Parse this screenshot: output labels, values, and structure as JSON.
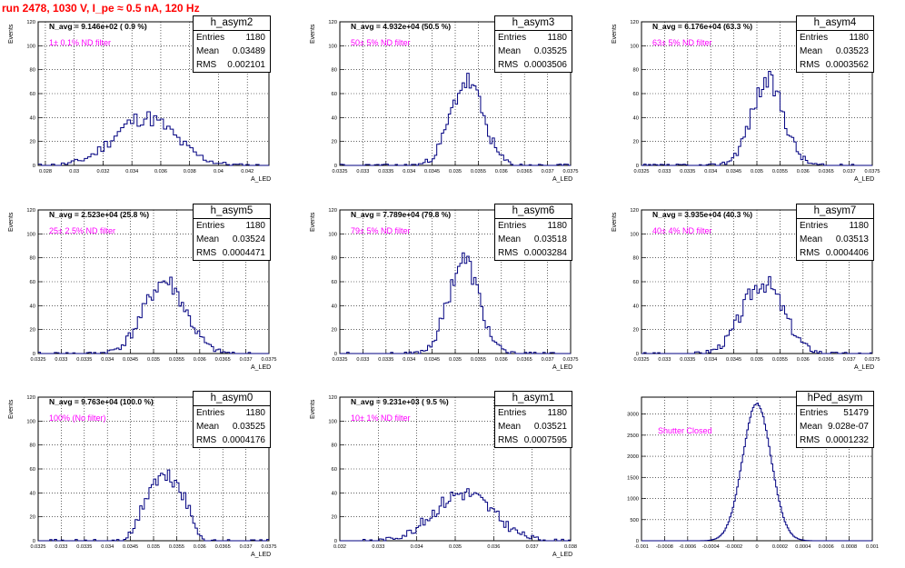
{
  "canvas_title": "run 2478,  1030 V, I_pe ≈ 0.5 nA, 120 Hz",
  "colors": {
    "title": "#ff0000",
    "histogram_line": "#000080",
    "annotation": "#ff00ff",
    "grid": "#000000"
  },
  "chart_data": [
    {
      "type": "histogram",
      "name": "h_asym2",
      "navg_text": "N_avg = 9.146e+02 ( 0.9 %)",
      "filter_text": "1± 0.1% ND filter",
      "stats": {
        "entries_label": "Entries",
        "entries": "1180",
        "mean_label": "Mean",
        "mean": "0.03489",
        "rms_label": "RMS",
        "rms": "0.002101"
      },
      "ylabel": "Events",
      "xlabel": "A_LED",
      "xlim": [
        0.0275,
        0.0435
      ],
      "ylim": [
        0,
        120
      ],
      "xticks": [
        "0.028",
        "0.03",
        "0.032",
        "0.034",
        "0.036",
        "0.038",
        "0.04",
        "0.042"
      ],
      "yticks": [
        "0",
        "20",
        "40",
        "60",
        "80",
        "100",
        "120"
      ],
      "grid": true,
      "curve": {
        "mean": 0.03489,
        "sigma": 0.0021,
        "peak": 40,
        "bins": 70,
        "seed": 11
      }
    },
    {
      "type": "histogram",
      "name": "h_asym3",
      "navg_text": "N_avg = 4.932e+04 (50.5 %)",
      "filter_text": "50± 5% ND filter",
      "stats": {
        "entries_label": "Entries",
        "entries": "1180",
        "mean_label": "Mean",
        "mean": "0.03525",
        "rms_label": "RMS",
        "rms": "0.0003506"
      },
      "ylabel": "Events",
      "xlabel": "A_LED",
      "xlim": [
        0.0325,
        0.0375
      ],
      "ylim": [
        0,
        120
      ],
      "xticks": [
        "0.0325",
        "0.033",
        "0.0335",
        "0.034",
        "0.0345",
        "0.035",
        "0.0355",
        "0.036",
        "0.0365",
        "0.037",
        "0.0375"
      ],
      "yticks": [
        "0",
        "20",
        "40",
        "60",
        "80",
        "100",
        "120"
      ],
      "grid": true,
      "curve": {
        "mean": 0.03525,
        "sigma": 0.00035,
        "peak": 70,
        "bins": 100,
        "seed": 23
      }
    },
    {
      "type": "histogram",
      "name": "h_asym4",
      "navg_text": "N_avg = 6.176e+04 (63.3 %)",
      "filter_text": "63± 5% ND filter",
      "stats": {
        "entries_label": "Entries",
        "entries": "1180",
        "mean_label": "Mean",
        "mean": "0.03523",
        "rms_label": "RMS",
        "rms": "0.0003562"
      },
      "ylabel": "Events",
      "xlabel": "A_LED",
      "xlim": [
        0.0325,
        0.0375
      ],
      "ylim": [
        0,
        120
      ],
      "xticks": [
        "0.0325",
        "0.033",
        "0.0335",
        "0.034",
        "0.0345",
        "0.035",
        "0.0355",
        "0.036",
        "0.0365",
        "0.037",
        "0.0375"
      ],
      "yticks": [
        "0",
        "20",
        "40",
        "60",
        "80",
        "100",
        "120"
      ],
      "grid": true,
      "curve": {
        "mean": 0.03523,
        "sigma": 0.00035,
        "peak": 70,
        "bins": 100,
        "seed": 37
      }
    },
    {
      "type": "histogram",
      "name": "h_asym5",
      "navg_text": "N_avg = 2.523e+04 (25.8 %)",
      "filter_text": "25± 2.5% ND filter",
      "stats": {
        "entries_label": "Entries",
        "entries": "1180",
        "mean_label": "Mean",
        "mean": "0.03524",
        "rms_label": "RMS",
        "rms": "0.0004471"
      },
      "ylabel": "Events",
      "xlabel": "A_LED",
      "xlim": [
        0.0325,
        0.0375
      ],
      "ylim": [
        0,
        120
      ],
      "xticks": [
        "0.0325",
        "0.033",
        "0.0335",
        "0.034",
        "0.0345",
        "0.035",
        "0.0355",
        "0.036",
        "0.0365",
        "0.037",
        "0.0375"
      ],
      "yticks": [
        "0",
        "20",
        "40",
        "60",
        "80",
        "100",
        "120"
      ],
      "grid": true,
      "curve": {
        "mean": 0.03524,
        "sigma": 0.00045,
        "peak": 60,
        "bins": 100,
        "seed": 41
      }
    },
    {
      "type": "histogram",
      "name": "h_asym6",
      "navg_text": "N_avg = 7.789e+04 (79.8 %)",
      "filter_text": "79± 5% ND filter",
      "stats": {
        "entries_label": "Entries",
        "entries": "1180",
        "mean_label": "Mean",
        "mean": "0.03518",
        "rms_label": "RMS",
        "rms": "0.0003284"
      },
      "ylabel": "Events",
      "xlabel": "A_LED",
      "xlim": [
        0.0325,
        0.0375
      ],
      "ylim": [
        0,
        120
      ],
      "xticks": [
        "0.0325",
        "0.033",
        "0.0335",
        "0.034",
        "0.0345",
        "0.035",
        "0.0355",
        "0.036",
        "0.0365",
        "0.037",
        "0.0375"
      ],
      "yticks": [
        "0",
        "20",
        "40",
        "60",
        "80",
        "100",
        "120"
      ],
      "grid": true,
      "curve": {
        "mean": 0.03518,
        "sigma": 0.00033,
        "peak": 78,
        "bins": 100,
        "seed": 53
      }
    },
    {
      "type": "histogram",
      "name": "h_asym7",
      "navg_text": "N_avg = 3.935e+04 (40.3 %)",
      "filter_text": "40± 4% ND filter",
      "stats": {
        "entries_label": "Entries",
        "entries": "1180",
        "mean_label": "Mean",
        "mean": "0.03513",
        "rms_label": "RMS",
        "rms": "0.0004406"
      },
      "ylabel": "Events",
      "xlabel": "A_LED",
      "xlim": [
        0.0325,
        0.0375
      ],
      "ylim": [
        0,
        120
      ],
      "xticks": [
        "0.0325",
        "0.033",
        "0.0335",
        "0.034",
        "0.0345",
        "0.035",
        "0.0355",
        "0.036",
        "0.0365",
        "0.037",
        "0.0375"
      ],
      "yticks": [
        "0",
        "20",
        "40",
        "60",
        "80",
        "100",
        "120"
      ],
      "grid": true,
      "curve": {
        "mean": 0.03513,
        "sigma": 0.00044,
        "peak": 60,
        "bins": 100,
        "seed": 67
      }
    },
    {
      "type": "histogram",
      "name": "h_asym0",
      "navg_text": "N_avg = 9.763e+04 (100.0 %)",
      "filter_text": "100% (No filter)",
      "stats": {
        "entries_label": "Entries",
        "entries": "1180",
        "mean_label": "Mean",
        "mean": "0.03525",
        "rms_label": "RMS",
        "rms": "0.0004176"
      },
      "ylabel": "Events",
      "xlabel": "A_LED",
      "xlim": [
        0.0325,
        0.0375
      ],
      "ylim": [
        0,
        120
      ],
      "xticks": [
        "0.0325",
        "0.033",
        "0.0335",
        "0.034",
        "0.0345",
        "0.035",
        "0.0355",
        "0.036",
        "0.0365",
        "0.037",
        "0.0375"
      ],
      "yticks": [
        "0",
        "20",
        "40",
        "60",
        "80",
        "100",
        "120"
      ],
      "grid": true,
      "curve": {
        "mean": 0.03525,
        "sigma": 0.00042,
        "peak": 52,
        "bins": 100,
        "seed": 71,
        "flat": true
      }
    },
    {
      "type": "histogram",
      "name": "h_asym1",
      "navg_text": "N_avg = 9.231e+03 ( 9.5 %)",
      "filter_text": "10± 1% ND filter",
      "stats": {
        "entries_label": "Entries",
        "entries": "1180",
        "mean_label": "Mean",
        "mean": "0.03521",
        "rms_label": "RMS",
        "rms": "0.0007595"
      },
      "ylabel": "Events",
      "xlabel": "A_LED",
      "xlim": [
        0.032,
        0.038
      ],
      "ylim": [
        0,
        120
      ],
      "xticks": [
        "0.032",
        "0.033",
        "0.034",
        "0.035",
        "0.036",
        "0.037",
        "0.038"
      ],
      "yticks": [
        "0",
        "20",
        "40",
        "60",
        "80",
        "100",
        "120"
      ],
      "grid": true,
      "curve": {
        "mean": 0.03521,
        "sigma": 0.00076,
        "peak": 40,
        "bins": 100,
        "seed": 83
      }
    },
    {
      "type": "histogram",
      "name": "hPed_asym",
      "navg_text": "",
      "filter_text": "Shutter Closed",
      "stats": {
        "entries_label": "Entries",
        "entries": "51479",
        "mean_label": "Mean",
        "mean": "9.028e-07",
        "rms_label": "RMS",
        "rms": "0.0001232"
      },
      "ylabel": "",
      "xlabel": "",
      "xlim": [
        -0.001,
        0.001
      ],
      "ylim": [
        0,
        3400
      ],
      "xticks": [
        "-0.001",
        "-0.0008",
        "-0.0006",
        "-0.0004",
        "-0.0002",
        "0",
        "0.0002",
        "0.0004",
        "0.0006",
        "0.0008",
        "0.001"
      ],
      "yticks": [
        "0",
        "500",
        "1000",
        "1500",
        "2000",
        "2500",
        "3000"
      ],
      "grid": true,
      "curve": {
        "mean": 0.0,
        "sigma": 0.000123,
        "peak": 3250,
        "bins": 160,
        "seed": 97,
        "smooth": true
      }
    }
  ]
}
